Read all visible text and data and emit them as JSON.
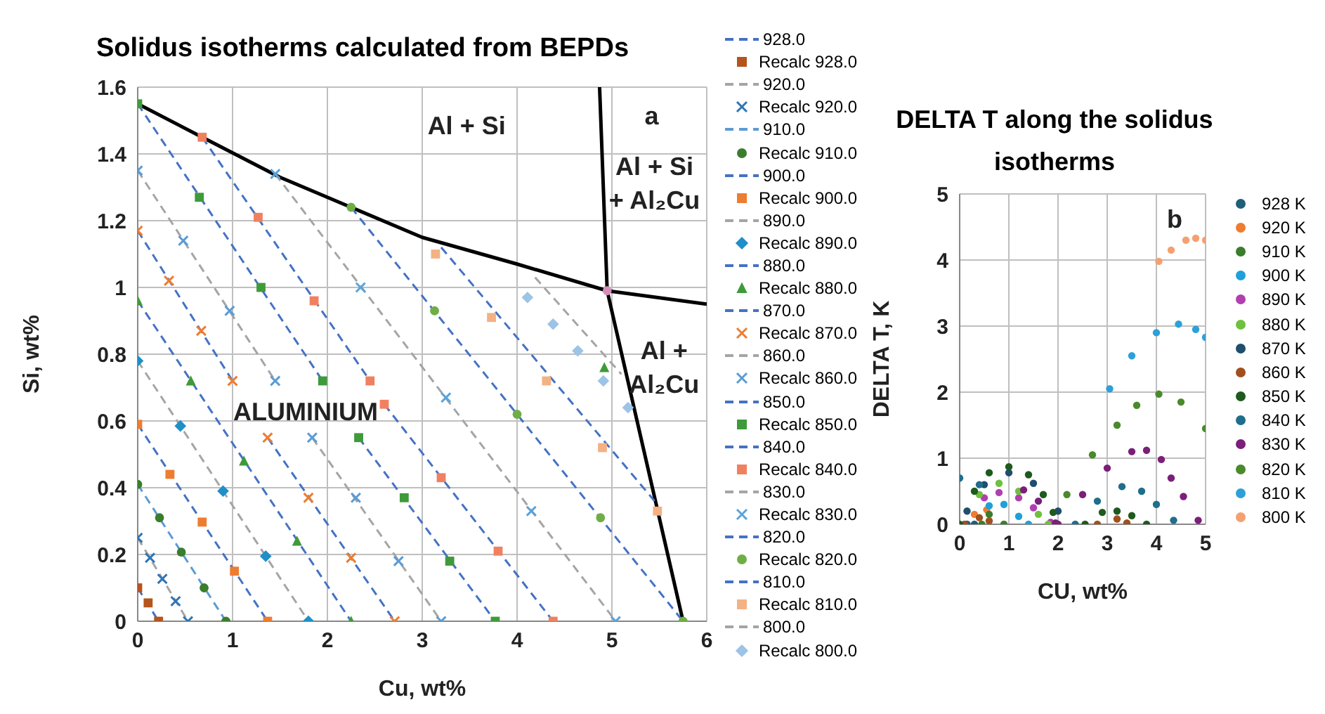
{
  "chart_data": [
    {
      "type": "scatter",
      "title": "Solidus isotherms calculated from  BEPDs",
      "xlabel": "Cu, wt%",
      "ylabel": "Si, wt%",
      "xlim": [
        0,
        6
      ],
      "xticks": [
        0,
        1,
        2,
        3,
        4,
        5,
        6
      ],
      "ylim": [
        0,
        1.6
      ],
      "yticks": [
        0,
        0.2,
        0.4,
        0.6,
        0.8,
        1,
        1.2,
        1.4,
        1.6
      ],
      "grid": true,
      "legend": "right",
      "annotations": [
        "Al + Si",
        "a",
        "Al + Si + Al₂Cu",
        "Al + Al₂Cu",
        "ALUMINIUM"
      ],
      "series": [
        {
          "type": "line",
          "color": "#000000",
          "line_style": "solid",
          "marker": "none",
          "x": [
            0,
            0.68,
            1.5,
            2.25,
            3,
            4,
            4.95,
            6
          ],
          "values": [
            1.55,
            1.45,
            1.33,
            1.24,
            1.15,
            1.07,
            0.99,
            0.95
          ]
        },
        {
          "type": "line",
          "color": "#000000",
          "line_style": "solid",
          "marker": "none",
          "x": [
            4.87,
            4.95,
            5.75
          ],
          "values": [
            1.6,
            0.99,
            0
          ]
        },
        {
          "type": "line",
          "name": "928.0",
          "color": "#4472c4",
          "line_style": "dashed",
          "marker": "none",
          "x": [
            0,
            0.22
          ],
          "values": [
            0.1,
            0
          ]
        },
        {
          "type": "scatter",
          "name": "Recalc 928.0",
          "color": "#b5541c",
          "marker": "square",
          "x": [
            0,
            0.11,
            0.22
          ],
          "values": [
            0.1,
            0.055,
            0
          ]
        },
        {
          "type": "line",
          "name": "920.0",
          "color": "#a5a5a5",
          "line_style": "dashed",
          "marker": "none",
          "x": [
            0,
            0.53
          ],
          "values": [
            0.25,
            0
          ]
        },
        {
          "type": "scatter",
          "name": "Recalc 920.0",
          "color": "#2e75b6",
          "marker": "cross",
          "x": [
            0,
            0.13,
            0.26,
            0.4,
            0.53
          ],
          "values": [
            0.25,
            0.19,
            0.127,
            0.06,
            0
          ]
        },
        {
          "type": "line",
          "name": "910.0",
          "color": "#5b9bd5",
          "line_style": "dashed",
          "marker": "none",
          "x": [
            0,
            0.93
          ],
          "values": [
            0.41,
            0
          ]
        },
        {
          "type": "scatter",
          "name": "Recalc 910.0",
          "color": "#3a7d2c",
          "marker": "circle",
          "x": [
            0,
            0.23,
            0.46,
            0.7,
            0.93
          ],
          "values": [
            0.41,
            0.31,
            0.207,
            0.1,
            0
          ]
        },
        {
          "type": "line",
          "name": "900.0",
          "color": "#4472c4",
          "line_style": "dashed",
          "marker": "none",
          "x": [
            0,
            1.37
          ],
          "values": [
            0.59,
            0
          ]
        },
        {
          "type": "scatter",
          "name": "Recalc 900.0",
          "color": "#ed7d31",
          "marker": "square",
          "x": [
            0,
            0.34,
            0.68,
            1.02,
            1.37
          ],
          "values": [
            0.59,
            0.44,
            0.297,
            0.15,
            0
          ]
        },
        {
          "type": "line",
          "name": "890.0",
          "color": "#a5a5a5",
          "line_style": "dashed",
          "marker": "none",
          "x": [
            0,
            1.8
          ],
          "values": [
            0.78,
            0
          ]
        },
        {
          "type": "scatter",
          "name": "Recalc 890.0",
          "color": "#1f8fc8",
          "marker": "diamond",
          "x": [
            0,
            0.45,
            0.9,
            1.35,
            1.8
          ],
          "values": [
            0.78,
            0.585,
            0.39,
            0.195,
            0
          ]
        },
        {
          "type": "line",
          "name": "880.0",
          "color": "#4472c4",
          "line_style": "dashed",
          "marker": "none",
          "x": [
            0,
            2.25
          ],
          "values": [
            0.96,
            0
          ]
        },
        {
          "type": "scatter",
          "name": "Recalc 880.0",
          "color": "#3f9a3a",
          "marker": "triangle",
          "x": [
            0,
            0.56,
            1.12,
            1.68,
            2.25,
            4.92
          ],
          "values": [
            0.96,
            0.72,
            0.48,
            0.24,
            0,
            0.76
          ]
        },
        {
          "type": "line",
          "name": "870.0",
          "color": "#4472c4",
          "line_style": "dashed",
          "marker": "none",
          "x": [
            0,
            1,
            1.2,
            1.37,
            2.71
          ],
          "values": [
            1.17,
            0.72,
            null,
            0.55,
            0
          ]
        },
        {
          "type": "scatter",
          "name": "Recalc 870.0",
          "color": "#ed7d31",
          "marker": "cross",
          "x": [
            0,
            0.33,
            0.67,
            1,
            1.37,
            1.8,
            2.25,
            2.71
          ],
          "values": [
            1.17,
            1.02,
            0.87,
            0.72,
            0.55,
            0.37,
            0.19,
            0
          ]
        },
        {
          "type": "line",
          "name": "860.0",
          "color": "#a5a5a5",
          "line_style": "dashed",
          "marker": "none",
          "x": [
            0,
            1.45,
            1.6,
            1.84,
            3.2
          ],
          "values": [
            1.35,
            0.72,
            null,
            0.55,
            0
          ]
        },
        {
          "type": "scatter",
          "name": "Recalc 860.0",
          "color": "#5b9bd5",
          "marker": "cross",
          "x": [
            0,
            0.48,
            0.97,
            1.45,
            1.84,
            2.3,
            2.75,
            3.2
          ],
          "values": [
            1.35,
            1.14,
            0.93,
            0.72,
            0.55,
            0.37,
            0.18,
            0
          ]
        },
        {
          "type": "line",
          "name": "850.0",
          "color": "#4472c4",
          "line_style": "dashed",
          "marker": "none",
          "x": [
            0,
            1.95,
            2.1,
            2.33,
            3.77
          ],
          "values": [
            1.55,
            0.72,
            null,
            0.55,
            0
          ]
        },
        {
          "type": "scatter",
          "name": "Recalc 850.0",
          "color": "#3f9a3a",
          "marker": "square",
          "x": [
            0,
            0.65,
            1.3,
            1.95,
            2.33,
            2.81,
            3.29,
            3.77
          ],
          "values": [
            1.55,
            1.27,
            1,
            0.72,
            0.55,
            0.37,
            0.18,
            0
          ]
        },
        {
          "type": "line",
          "name": "840.0",
          "color": "#4472c4",
          "line_style": "dashed",
          "marker": "none",
          "x": [
            0.68,
            2.45,
            2.5,
            2.6,
            4.38
          ],
          "values": [
            1.45,
            0.72,
            null,
            0.65,
            0
          ]
        },
        {
          "type": "scatter",
          "name": "Recalc 840.0",
          "color": "#f08060",
          "marker": "square",
          "x": [
            0.68,
            1.27,
            1.86,
            2.45,
            2.6,
            3.2,
            3.8,
            4.38
          ],
          "values": [
            1.45,
            1.21,
            0.96,
            0.72,
            0.65,
            0.43,
            0.21,
            0
          ]
        },
        {
          "type": "line",
          "name": "830.0",
          "color": "#a5a5a5",
          "line_style": "dashed",
          "marker": "none",
          "x": [
            1.45,
            5.04
          ],
          "values": [
            1.34,
            0
          ]
        },
        {
          "type": "scatter",
          "name": "Recalc 830.0",
          "color": "#5ba3d9",
          "marker": "cross",
          "x": [
            1.45,
            2.35,
            3.25,
            4.15,
            5.04
          ],
          "values": [
            1.34,
            1,
            0.67,
            0.33,
            0
          ]
        },
        {
          "type": "line",
          "name": "820.0",
          "color": "#4472c4",
          "line_style": "dashed",
          "marker": "none",
          "x": [
            2.25,
            5.75
          ],
          "values": [
            1.24,
            0
          ]
        },
        {
          "type": "scatter",
          "name": "Recalc 820.0",
          "color": "#70ad47",
          "marker": "circle",
          "x": [
            2.25,
            3.13,
            4,
            4.88,
            5.75
          ],
          "values": [
            1.24,
            0.93,
            0.62,
            0.31,
            0
          ]
        },
        {
          "type": "line",
          "name": "810.0",
          "color": "#4472c4",
          "line_style": "dashed",
          "marker": "none",
          "x": [
            3.2,
            5.45
          ],
          "values": [
            1.12,
            0.36
          ]
        },
        {
          "type": "scatter",
          "name": "Recalc 810.0",
          "color": "#f4b183",
          "marker": "square",
          "x": [
            3.14,
            3.73,
            4.31,
            4.9,
            5.48
          ],
          "values": [
            1.1,
            0.91,
            0.72,
            0.52,
            0.33
          ]
        },
        {
          "type": "line",
          "name": "800.0",
          "color": "#a5a5a5",
          "line_style": "dashed",
          "marker": "none",
          "x": [
            4.19,
            5.1
          ],
          "values": [
            1.03,
            0.74
          ]
        },
        {
          "type": "scatter",
          "name": "Recalc 800.0",
          "color": "#9dc3e6",
          "marker": "diamond",
          "x": [
            4.11,
            4.38,
            4.64,
            4.91,
            5.17
          ],
          "values": [
            0.97,
            0.89,
            0.81,
            0.72,
            0.64
          ]
        },
        {
          "type": "scatter",
          "color": "#d48fb8",
          "marker": "circle",
          "x": [
            4.95
          ],
          "values": [
            0.99
          ]
        }
      ]
    },
    {
      "type": "scatter",
      "title": "DELTA T along the solidus isotherms",
      "xlabel": "CU, wt%",
      "ylabel": "DELTA T, K",
      "xlim": [
        0,
        5
      ],
      "xticks": [
        0,
        1,
        2,
        3,
        4,
        5
      ],
      "ylim": [
        0,
        5
      ],
      "yticks": [
        0,
        1,
        2,
        3,
        4,
        5
      ],
      "grid": true,
      "legend": "right",
      "marker": "circle",
      "annotations": [
        "b"
      ],
      "series": [
        {
          "name": "928 K",
          "color": "#1f5f7a",
          "x": [
            0.15,
            0.3
          ],
          "values": [
            0,
            0
          ]
        },
        {
          "name": "920 K",
          "color": "#ed7d31",
          "x": [
            0.3,
            0.55
          ],
          "values": [
            0.15,
            0.22
          ]
        },
        {
          "name": "910 K",
          "color": "#3a7d2c",
          "x": [
            0.45,
            0.6,
            0.9
          ],
          "values": [
            0,
            0.15,
            0
          ]
        },
        {
          "name": "900 K",
          "color": "#1fa0d8",
          "x": [
            0.6,
            0.9,
            1.2,
            1.4
          ],
          "values": [
            0.28,
            0.3,
            0.12,
            0
          ]
        },
        {
          "name": "890 K",
          "color": "#b03fb0",
          "x": [
            0.5,
            0.8,
            1.2,
            1.5,
            1.85
          ],
          "values": [
            0.4,
            0.48,
            0.4,
            0.25,
            0.03
          ]
        },
        {
          "name": "880 K",
          "color": "#70c040",
          "x": [
            0.4,
            0.8,
            1.2,
            1.6,
            1.8
          ],
          "values": [
            0.45,
            0.62,
            0.5,
            0.15,
            0
          ]
        },
        {
          "name": "870 K",
          "color": "#1f4e6e",
          "x": [
            0.15,
            0.5,
            1,
            1.5,
            2
          ],
          "values": [
            0.2,
            0.6,
            0.78,
            0.62,
            0.2
          ]
        },
        {
          "name": "860 K",
          "color": "#a0501c",
          "x": [
            0.1,
            0.4,
            0.6,
            2.8,
            3.2,
            3.4
          ],
          "values": [
            0,
            0.1,
            0.05,
            0,
            0.08,
            0.02
          ]
        },
        {
          "name": "850 K",
          "color": "#1e5a1e",
          "x": [
            0,
            0.3,
            0.6,
            1,
            1.4,
            1.7,
            1.9,
            2.55,
            2.9,
            3.2,
            3.5,
            3.8
          ],
          "values": [
            0,
            0.5,
            0.78,
            0.87,
            0.75,
            0.45,
            0.18,
            0,
            0.18,
            0.2,
            0.13,
            0
          ]
        },
        {
          "name": "840 K",
          "color": "#1f6e8c",
          "x": [
            0,
            0.4,
            2.35,
            2.8,
            3.3,
            3.7,
            4,
            4.35
          ],
          "values": [
            0.7,
            0.6,
            0,
            0.35,
            0.57,
            0.5,
            0.3,
            0.06
          ]
        },
        {
          "name": "830 K",
          "color": "#7a1f7a",
          "x": [
            1.3,
            1.6,
            1.95,
            2,
            2.5,
            3,
            3.5,
            3.8,
            4.1,
            4.3,
            4.55,
            4.85
          ],
          "values": [
            0.52,
            0.35,
            0.02,
            0,
            0.45,
            0.85,
            1.1,
            1.12,
            0.98,
            0.7,
            0.42,
            0.06
          ]
        },
        {
          "name": "820 K",
          "color": "#4a8a2a",
          "x": [
            2.18,
            2.7,
            3.2,
            3.6,
            4.05,
            4.5,
            5
          ],
          "values": [
            0.45,
            1.05,
            1.5,
            1.8,
            1.97,
            1.85,
            1.45
          ]
        },
        {
          "name": "810 K",
          "color": "#2ea0d8",
          "x": [
            3.05,
            3.5,
            4,
            4.45,
            4.8,
            5
          ],
          "values": [
            2.05,
            2.55,
            2.9,
            3.03,
            2.95,
            2.83
          ]
        },
        {
          "name": "800 K",
          "color": "#f4a070",
          "x": [
            4.05,
            4.3,
            4.6,
            4.8,
            5
          ],
          "values": [
            3.98,
            4.15,
            4.3,
            4.33,
            4.3
          ]
        }
      ]
    }
  ]
}
